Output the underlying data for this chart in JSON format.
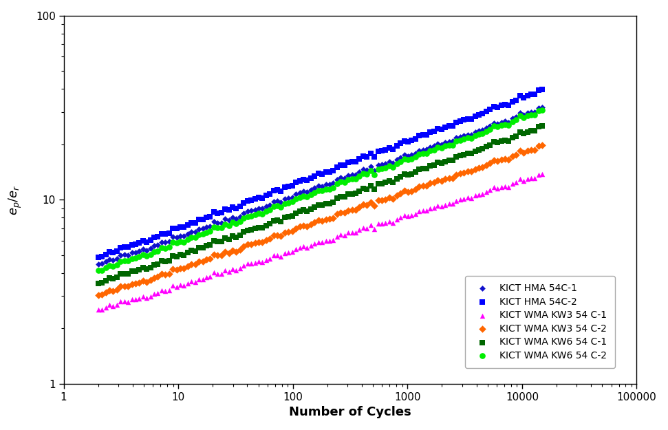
{
  "series": [
    {
      "label": "KICT HMA 54C-1",
      "color": "#1010CC",
      "marker": "D",
      "markersize": 5,
      "x_start": 2,
      "x_end": 15000,
      "a": 3.8,
      "b": 0.22
    },
    {
      "label": "KICT HMA 54C-2",
      "color": "#0000FF",
      "marker": "s",
      "markersize": 6,
      "x_start": 2,
      "x_end": 15000,
      "a": 4.1,
      "b": 0.235
    },
    {
      "label": "KICT WMA KW3 54 C-1",
      "color": "#FF00FF",
      "marker": "^",
      "markersize": 6,
      "x_start": 2,
      "x_end": 15000,
      "a": 2.2,
      "b": 0.19
    },
    {
      "label": "KICT WMA KW3 54 C-2",
      "color": "#FF6600",
      "marker": "D",
      "markersize": 6,
      "x_start": 2,
      "x_end": 15000,
      "a": 2.6,
      "b": 0.21
    },
    {
      "label": "KICT WMA KW6 54 C-1",
      "color": "#006600",
      "marker": "s",
      "markersize": 6,
      "x_start": 2,
      "x_end": 15000,
      "a": 3.0,
      "b": 0.22
    },
    {
      "label": "KICT WMA KW6 54 C-2",
      "color": "#00EE00",
      "marker": "o",
      "markersize": 7,
      "x_start": 2,
      "x_end": 15000,
      "a": 3.5,
      "b": 0.225
    }
  ],
  "xlabel": "Number of Cycles",
  "ylabel": "e_p/e_r",
  "xlim": [
    1,
    100000
  ],
  "ylim": [
    1,
    100
  ],
  "background_color": "#ffffff",
  "legend_fontsize": 10,
  "axis_label_fontsize": 13,
  "tick_fontsize": 11,
  "n_points": 120
}
